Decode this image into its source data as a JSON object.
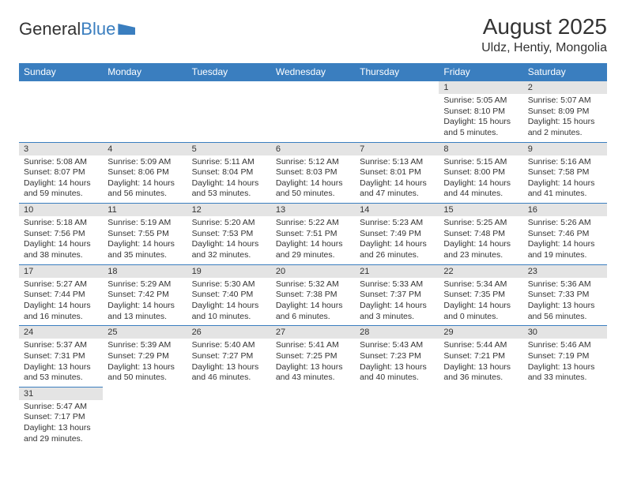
{
  "logo": {
    "text1": "General",
    "text2": "Blue"
  },
  "title": "August 2025",
  "location": "Uldz, Hentiy, Mongolia",
  "colors": {
    "header_bg": "#3a7ebf",
    "daynum_bg": "#e4e4e4",
    "border": "#3a7ebf"
  },
  "weekdays": [
    "Sunday",
    "Monday",
    "Tuesday",
    "Wednesday",
    "Thursday",
    "Friday",
    "Saturday"
  ],
  "weeks": [
    [
      null,
      null,
      null,
      null,
      null,
      {
        "n": "1",
        "sr": "Sunrise: 5:05 AM",
        "ss": "Sunset: 8:10 PM",
        "dl": "Daylight: 15 hours and 5 minutes."
      },
      {
        "n": "2",
        "sr": "Sunrise: 5:07 AM",
        "ss": "Sunset: 8:09 PM",
        "dl": "Daylight: 15 hours and 2 minutes."
      }
    ],
    [
      {
        "n": "3",
        "sr": "Sunrise: 5:08 AM",
        "ss": "Sunset: 8:07 PM",
        "dl": "Daylight: 14 hours and 59 minutes."
      },
      {
        "n": "4",
        "sr": "Sunrise: 5:09 AM",
        "ss": "Sunset: 8:06 PM",
        "dl": "Daylight: 14 hours and 56 minutes."
      },
      {
        "n": "5",
        "sr": "Sunrise: 5:11 AM",
        "ss": "Sunset: 8:04 PM",
        "dl": "Daylight: 14 hours and 53 minutes."
      },
      {
        "n": "6",
        "sr": "Sunrise: 5:12 AM",
        "ss": "Sunset: 8:03 PM",
        "dl": "Daylight: 14 hours and 50 minutes."
      },
      {
        "n": "7",
        "sr": "Sunrise: 5:13 AM",
        "ss": "Sunset: 8:01 PM",
        "dl": "Daylight: 14 hours and 47 minutes."
      },
      {
        "n": "8",
        "sr": "Sunrise: 5:15 AM",
        "ss": "Sunset: 8:00 PM",
        "dl": "Daylight: 14 hours and 44 minutes."
      },
      {
        "n": "9",
        "sr": "Sunrise: 5:16 AM",
        "ss": "Sunset: 7:58 PM",
        "dl": "Daylight: 14 hours and 41 minutes."
      }
    ],
    [
      {
        "n": "10",
        "sr": "Sunrise: 5:18 AM",
        "ss": "Sunset: 7:56 PM",
        "dl": "Daylight: 14 hours and 38 minutes."
      },
      {
        "n": "11",
        "sr": "Sunrise: 5:19 AM",
        "ss": "Sunset: 7:55 PM",
        "dl": "Daylight: 14 hours and 35 minutes."
      },
      {
        "n": "12",
        "sr": "Sunrise: 5:20 AM",
        "ss": "Sunset: 7:53 PM",
        "dl": "Daylight: 14 hours and 32 minutes."
      },
      {
        "n": "13",
        "sr": "Sunrise: 5:22 AM",
        "ss": "Sunset: 7:51 PM",
        "dl": "Daylight: 14 hours and 29 minutes."
      },
      {
        "n": "14",
        "sr": "Sunrise: 5:23 AM",
        "ss": "Sunset: 7:49 PM",
        "dl": "Daylight: 14 hours and 26 minutes."
      },
      {
        "n": "15",
        "sr": "Sunrise: 5:25 AM",
        "ss": "Sunset: 7:48 PM",
        "dl": "Daylight: 14 hours and 23 minutes."
      },
      {
        "n": "16",
        "sr": "Sunrise: 5:26 AM",
        "ss": "Sunset: 7:46 PM",
        "dl": "Daylight: 14 hours and 19 minutes."
      }
    ],
    [
      {
        "n": "17",
        "sr": "Sunrise: 5:27 AM",
        "ss": "Sunset: 7:44 PM",
        "dl": "Daylight: 14 hours and 16 minutes."
      },
      {
        "n": "18",
        "sr": "Sunrise: 5:29 AM",
        "ss": "Sunset: 7:42 PM",
        "dl": "Daylight: 14 hours and 13 minutes."
      },
      {
        "n": "19",
        "sr": "Sunrise: 5:30 AM",
        "ss": "Sunset: 7:40 PM",
        "dl": "Daylight: 14 hours and 10 minutes."
      },
      {
        "n": "20",
        "sr": "Sunrise: 5:32 AM",
        "ss": "Sunset: 7:38 PM",
        "dl": "Daylight: 14 hours and 6 minutes."
      },
      {
        "n": "21",
        "sr": "Sunrise: 5:33 AM",
        "ss": "Sunset: 7:37 PM",
        "dl": "Daylight: 14 hours and 3 minutes."
      },
      {
        "n": "22",
        "sr": "Sunrise: 5:34 AM",
        "ss": "Sunset: 7:35 PM",
        "dl": "Daylight: 14 hours and 0 minutes."
      },
      {
        "n": "23",
        "sr": "Sunrise: 5:36 AM",
        "ss": "Sunset: 7:33 PM",
        "dl": "Daylight: 13 hours and 56 minutes."
      }
    ],
    [
      {
        "n": "24",
        "sr": "Sunrise: 5:37 AM",
        "ss": "Sunset: 7:31 PM",
        "dl": "Daylight: 13 hours and 53 minutes."
      },
      {
        "n": "25",
        "sr": "Sunrise: 5:39 AM",
        "ss": "Sunset: 7:29 PM",
        "dl": "Daylight: 13 hours and 50 minutes."
      },
      {
        "n": "26",
        "sr": "Sunrise: 5:40 AM",
        "ss": "Sunset: 7:27 PM",
        "dl": "Daylight: 13 hours and 46 minutes."
      },
      {
        "n": "27",
        "sr": "Sunrise: 5:41 AM",
        "ss": "Sunset: 7:25 PM",
        "dl": "Daylight: 13 hours and 43 minutes."
      },
      {
        "n": "28",
        "sr": "Sunrise: 5:43 AM",
        "ss": "Sunset: 7:23 PM",
        "dl": "Daylight: 13 hours and 40 minutes."
      },
      {
        "n": "29",
        "sr": "Sunrise: 5:44 AM",
        "ss": "Sunset: 7:21 PM",
        "dl": "Daylight: 13 hours and 36 minutes."
      },
      {
        "n": "30",
        "sr": "Sunrise: 5:46 AM",
        "ss": "Sunset: 7:19 PM",
        "dl": "Daylight: 13 hours and 33 minutes."
      }
    ],
    [
      {
        "n": "31",
        "sr": "Sunrise: 5:47 AM",
        "ss": "Sunset: 7:17 PM",
        "dl": "Daylight: 13 hours and 29 minutes."
      },
      null,
      null,
      null,
      null,
      null,
      null
    ]
  ]
}
